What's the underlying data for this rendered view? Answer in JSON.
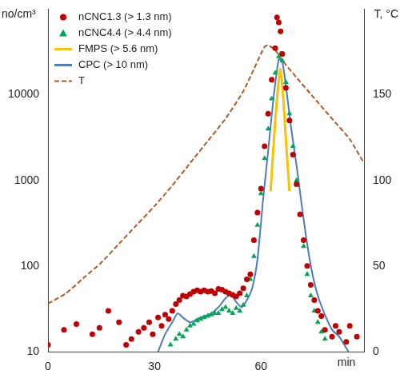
{
  "chart_data": {
    "type": "scatter",
    "x_label": "min",
    "y_label": "no/cm³",
    "y2_label": "T, °C",
    "xlim": [
      0,
      89
    ],
    "xticks": [
      0,
      30,
      60
    ],
    "ylim": [
      10,
      100000
    ],
    "yticks": [
      10,
      100,
      1000,
      10000
    ],
    "y2lim": [
      0,
      200
    ],
    "y2ticks": [
      0,
      50,
      100,
      150
    ],
    "log": "y",
    "grid": false,
    "legend": "top-left",
    "series": [
      {
        "name": "nCNC1.3 (> 1.3 nm)",
        "color": "#c00000",
        "type": "scatter",
        "marker": "circle",
        "x": [
          0,
          4.5,
          8,
          12.5,
          14.5,
          17,
          20,
          22,
          23.5,
          25.5,
          27,
          28.5,
          29.5,
          31,
          32,
          33,
          34,
          35,
          36,
          37,
          38,
          39,
          40,
          41,
          42,
          43,
          44,
          45,
          46,
          47,
          48,
          49,
          50,
          51,
          52,
          53,
          54,
          55,
          56,
          57,
          58,
          59,
          60,
          61,
          62,
          63,
          64,
          64.5,
          65,
          65.5,
          66,
          67,
          68,
          69,
          70,
          71,
          72,
          73,
          74,
          75,
          76,
          77,
          78,
          80,
          81,
          82,
          84,
          85,
          87
        ],
        "values": [
          12,
          18,
          21,
          16,
          19,
          30,
          22,
          12,
          14,
          17,
          19,
          22,
          16,
          25,
          20,
          27,
          24,
          30,
          36,
          40,
          45,
          44,
          47,
          50,
          52,
          50,
          52,
          50,
          51,
          48,
          54,
          53,
          50,
          48,
          46,
          44,
          48,
          55,
          70,
          80,
          200,
          420,
          800,
          2500,
          6000,
          15000,
          35000,
          80000,
          70000,
          55000,
          30000,
          12000,
          5000,
          2000,
          900,
          400,
          200,
          100,
          60,
          40,
          30,
          26,
          18,
          15,
          20,
          17,
          13,
          20,
          15
        ]
      },
      {
        "name": "nCNC4.4 (> 4.4 nm)",
        "color": "#00a651",
        "type": "scatter",
        "marker": "triangle",
        "x": [
          34.5,
          36,
          37,
          38,
          39,
          40,
          41,
          42,
          43,
          44,
          45,
          46,
          47,
          48,
          49,
          50,
          51,
          52,
          53,
          54,
          55,
          56,
          57,
          58,
          59,
          60,
          61,
          62,
          63,
          64,
          65,
          65.5,
          66,
          67,
          68,
          69,
          70,
          71,
          72,
          73,
          74,
          75,
          76,
          77,
          78
        ],
        "values": [
          12,
          14,
          16,
          15,
          18,
          20,
          21,
          23,
          24,
          25,
          26,
          27,
          28,
          28,
          31,
          33,
          30,
          28,
          32,
          30,
          35,
          45,
          70,
          130,
          300,
          700,
          1800,
          4000,
          9000,
          18000,
          28000,
          30000,
          25000,
          14000,
          6000,
          2500,
          1000,
          400,
          170,
          80,
          45,
          30,
          22,
          17,
          14
        ]
      },
      {
        "name": "FMPS (> 5.6 nm)",
        "color": "#ffc000",
        "type": "line",
        "line_style": "solid",
        "x": [
          62.7,
          63.5,
          64.5,
          65.4,
          66.2,
          67,
          68
        ],
        "values": [
          750,
          2500,
          9000,
          20000,
          10000,
          3000,
          750
        ]
      },
      {
        "name": "CPC (> 10 nm)",
        "color": "#4a7ebb",
        "type": "line",
        "line_style": "solid",
        "x": [
          31,
          33,
          35,
          36.5,
          38,
          40,
          42,
          44,
          46,
          48,
          50,
          51.5,
          53,
          54.5,
          56,
          57.5,
          59,
          60.5,
          62,
          63.5,
          65,
          66,
          67.2,
          68.5,
          70,
          71.5,
          73,
          74.5,
          76,
          78,
          80,
          82,
          84.6
        ],
        "values": [
          10,
          16,
          22,
          28,
          25,
          22,
          24,
          26,
          28,
          33,
          42,
          46,
          38,
          33,
          40,
          55,
          120,
          550,
          2200,
          9000,
          26000,
          24000,
          11000,
          4000,
          1500,
          500,
          180,
          80,
          45,
          27,
          18,
          15,
          10
        ]
      },
      {
        "name": "T",
        "color": "#b05a28",
        "type": "line",
        "line_style": "dashed",
        "axis": "y2",
        "x": [
          0,
          5,
          10,
          15,
          20,
          25,
          30,
          35,
          40,
          45,
          50,
          55,
          58,
          60,
          61,
          62,
          64,
          66,
          70,
          75,
          80,
          85,
          89
        ],
        "values": [
          28,
          34,
          43,
          52,
          63,
          74,
          85,
          97,
          110,
          123,
          136,
          152,
          165,
          174,
          178,
          179,
          176,
          170,
          160,
          148,
          136,
          124,
          110
        ]
      }
    ]
  }
}
